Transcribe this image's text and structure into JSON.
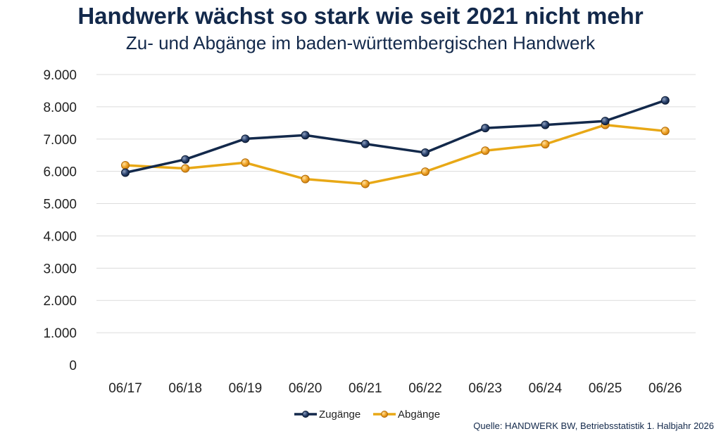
{
  "title": "Handwerk wächst so stark wie seit 2021 nicht mehr",
  "subtitle": "Zu- und Abgänge im baden-württembergischen Handwerk",
  "source": "Quelle: HANDWERK BW, Betriebsstatistik 1. Halbjahr 2026",
  "colors": {
    "zugaenge": "#13294b",
    "abgaenge": "#e8a816",
    "grid": "#dcdcdc",
    "text": "#13294b"
  },
  "chart_data": {
    "type": "line",
    "categories": [
      "06/17",
      "06/18",
      "06/19",
      "06/20",
      "06/21",
      "06/22",
      "06/23",
      "06/24",
      "06/25",
      "06/26"
    ],
    "series": [
      {
        "name": "Zugänge",
        "color": "#13294b",
        "values": [
          5960,
          6370,
          7010,
          7120,
          6850,
          6580,
          7340,
          7440,
          7560,
          8200
        ]
      },
      {
        "name": "Abgänge",
        "color": "#e8a816",
        "values": [
          6190,
          6090,
          6270,
          5760,
          5610,
          5990,
          6640,
          6840,
          7440,
          7250
        ]
      }
    ],
    "y_ticks": [
      "0",
      "1.000",
      "2.000",
      "3.000",
      "4.000",
      "5.000",
      "6.000",
      "7.000",
      "8.000",
      "9.000"
    ],
    "ylim": [
      0,
      9000
    ],
    "grid": true,
    "legend_position": "bottom-center"
  }
}
